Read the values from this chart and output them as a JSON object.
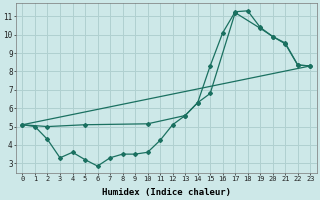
{
  "xlabel": "Humidex (Indice chaleur)",
  "bg_color": "#cde8e8",
  "grid_color": "#b0d0d0",
  "line_color": "#1a7060",
  "xlim": [
    -0.5,
    23.5
  ],
  "ylim": [
    2.5,
    11.7
  ],
  "xticks": [
    0,
    1,
    2,
    3,
    4,
    5,
    6,
    7,
    8,
    9,
    10,
    11,
    12,
    13,
    14,
    15,
    16,
    17,
    18,
    19,
    20,
    21,
    22,
    23
  ],
  "yticks": [
    3,
    4,
    5,
    6,
    7,
    8,
    9,
    10,
    11
  ],
  "series1_x": [
    0,
    1,
    2,
    3,
    4,
    5,
    6,
    7,
    8,
    9,
    10,
    11,
    12,
    13,
    14,
    15,
    16,
    17,
    18,
    19,
    20,
    21,
    22,
    23
  ],
  "series1_y": [
    5.1,
    5.0,
    4.3,
    3.3,
    3.6,
    3.2,
    2.85,
    3.3,
    3.5,
    3.5,
    3.6,
    4.25,
    5.1,
    5.6,
    6.3,
    8.3,
    10.1,
    11.25,
    11.3,
    10.4,
    9.9,
    9.5,
    8.35,
    8.3
  ],
  "series2_x": [
    0,
    2,
    5,
    10,
    13,
    14,
    15,
    17,
    19,
    20,
    21,
    22,
    23
  ],
  "series2_y": [
    5.1,
    5.0,
    5.1,
    5.15,
    5.6,
    6.3,
    6.8,
    11.2,
    10.35,
    9.9,
    9.55,
    8.35,
    8.3
  ],
  "series3_x": [
    0,
    23
  ],
  "series3_y": [
    5.1,
    8.3
  ]
}
